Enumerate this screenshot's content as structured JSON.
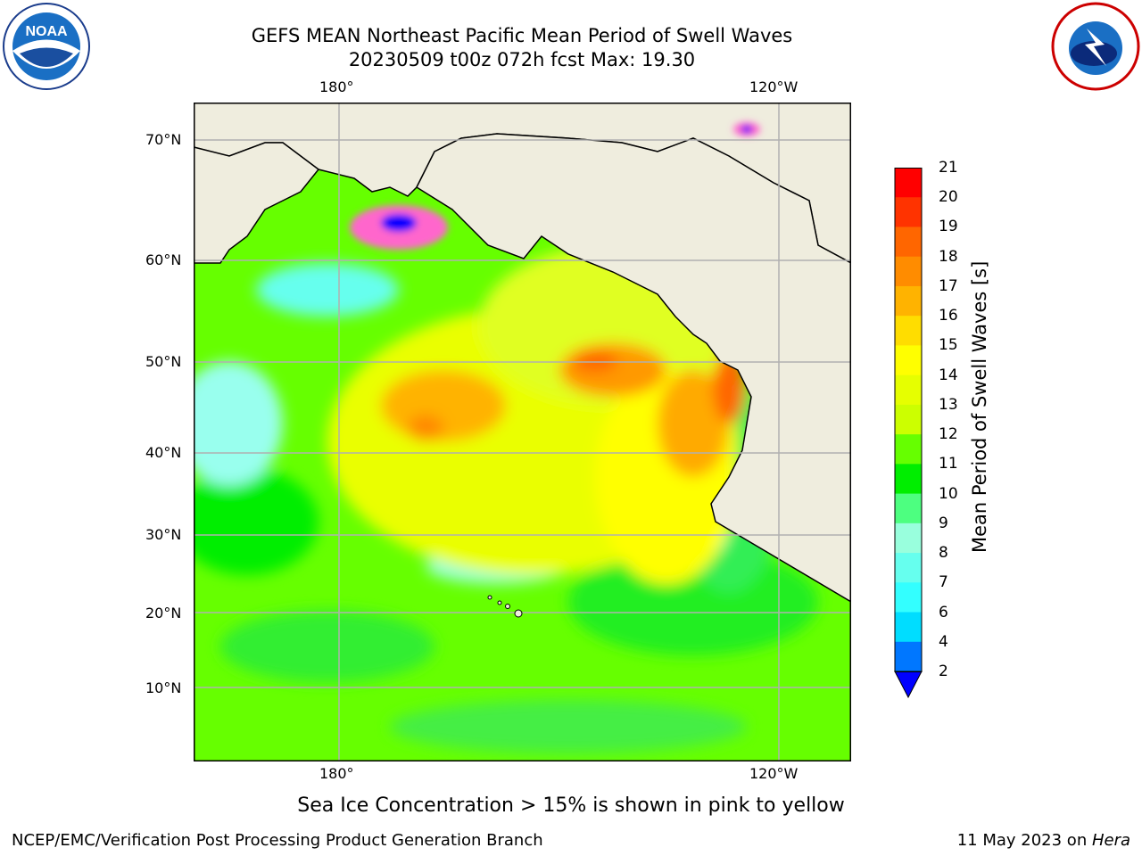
{
  "header": {
    "title_line1": "GEFS MEAN Northeast Pacific Mean Period of Swell Waves",
    "title_line2": "20230509 t00z 072h fcst   Max: 19.30"
  },
  "logos": {
    "left": "NOAA",
    "right": "NATIONAL WEATHER SERVICE"
  },
  "map": {
    "lon_labels_top": [
      "180°",
      "120°W"
    ],
    "lon_labels_bottom": [
      "180°",
      "120°W"
    ],
    "lat_labels": [
      "70°N",
      "60°N",
      "50°N",
      "40°N",
      "30°N",
      "20°N",
      "10°N"
    ],
    "colors": {
      "land": "#efedde",
      "ocean_base": "#66ff00",
      "grid": "#b0b0b0"
    }
  },
  "colorbar": {
    "label": "Mean Period of Swell Waves [s]",
    "ticks": [
      "21",
      "20",
      "19",
      "18",
      "17",
      "16",
      "15",
      "14",
      "13",
      "12",
      "11",
      "10",
      "9",
      "8",
      "7",
      "6",
      "4",
      "2"
    ],
    "colors": [
      "#ff0000",
      "#ff3300",
      "#ff6600",
      "#ff8c00",
      "#ffb300",
      "#ffdd00",
      "#ffff00",
      "#e6ff00",
      "#ccff00",
      "#66ff00",
      "#00ee00",
      "#4dff80",
      "#99ffdd",
      "#66ffee",
      "#33ffff",
      "#00ddff",
      "#0077ff",
      "#0000ff"
    ]
  },
  "caption": "Sea Ice Concentration > 15% is shown in pink to yellow",
  "footer": {
    "left": "NCEP/EMC/Verification Post Processing Product Generation Branch",
    "right_date": "11 May 2023 on ",
    "right_host": "Hera"
  }
}
